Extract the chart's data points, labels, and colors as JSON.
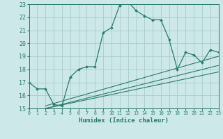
{
  "xlabel": "Humidex (Indice chaleur)",
  "bg_color": "#cce8e8",
  "grid_color": "#aacccc",
  "line_color": "#2a7a6a",
  "xmin": 0,
  "xmax": 23,
  "ymin": 15,
  "ymax": 23,
  "main_line": {
    "x": [
      0,
      1,
      2,
      3,
      4,
      5,
      6,
      7,
      8,
      9,
      10,
      11,
      12,
      13,
      14,
      15,
      16,
      17,
      18,
      19,
      20,
      21,
      22,
      23
    ],
    "y": [
      17.0,
      16.5,
      16.5,
      15.3,
      15.2,
      17.4,
      18.0,
      18.2,
      18.2,
      20.8,
      21.2,
      22.9,
      23.2,
      22.5,
      22.1,
      21.8,
      21.8,
      20.3,
      18.0,
      19.3,
      19.1,
      18.5,
      19.5,
      19.3
    ]
  },
  "ref_lines": [
    {
      "x": [
        2,
        23
      ],
      "y": [
        15.0,
        17.8
      ]
    },
    {
      "x": [
        2,
        23
      ],
      "y": [
        15.0,
        18.3
      ]
    },
    {
      "x": [
        2,
        23
      ],
      "y": [
        15.2,
        19.0
      ]
    }
  ],
  "xlabel_fontsize": 6.5,
  "xtick_fontsize": 4.8,
  "ytick_fontsize": 6.0
}
